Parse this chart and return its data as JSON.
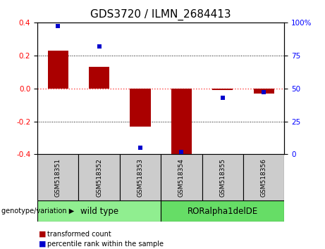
{
  "title": "GDS3720 / ILMN_2684413",
  "samples": [
    "GSM518351",
    "GSM518352",
    "GSM518353",
    "GSM518354",
    "GSM518355",
    "GSM518356"
  ],
  "transformed_count": [
    0.23,
    0.13,
    -0.23,
    -0.41,
    -0.01,
    -0.03
  ],
  "percentile_rank": [
    97,
    82,
    5,
    2,
    43,
    47
  ],
  "ylim_left": [
    -0.4,
    0.4
  ],
  "ylim_right": [
    0,
    100
  ],
  "yticks_left": [
    -0.4,
    -0.2,
    0.0,
    0.2,
    0.4
  ],
  "yticks_right": [
    0,
    25,
    50,
    75,
    100
  ],
  "ytick_labels_right": [
    "0",
    "25",
    "50",
    "75",
    "100%"
  ],
  "bar_color": "#AA0000",
  "scatter_color": "#0000CC",
  "hline_color": "#FF4444",
  "grid_color": "black",
  "grid_at": [
    -0.2,
    0.2
  ],
  "genotype_labels": [
    "wild type",
    "RORalpha1delDE"
  ],
  "genotype_colors": [
    "#90EE90",
    "#66DD66"
  ],
  "legend_items": [
    {
      "label": "transformed count",
      "color": "#AA0000"
    },
    {
      "label": "percentile rank within the sample",
      "color": "#0000CC"
    }
  ],
  "bar_width": 0.5,
  "background_color": "#ffffff",
  "xtick_bg": "#cccccc",
  "title_fontsize": 11,
  "tick_fontsize": 7.5,
  "label_fontsize": 8
}
